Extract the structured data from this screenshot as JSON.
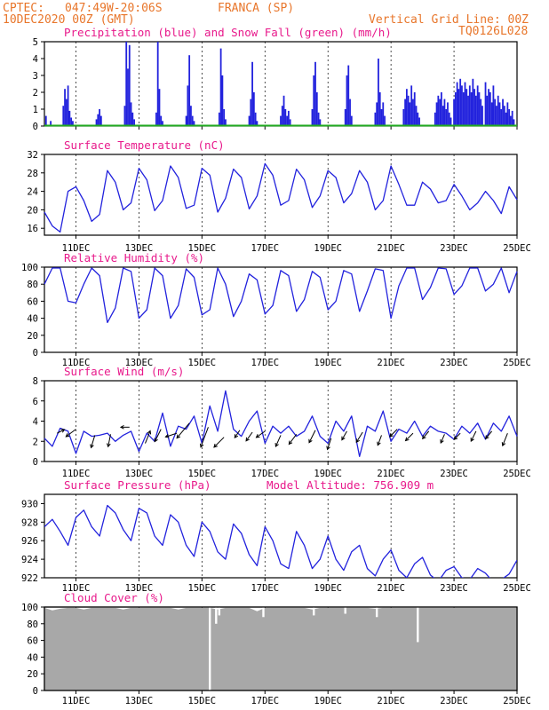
{
  "header": {
    "source": "CPTEC:",
    "coords": "047:49W-20:06S",
    "location": "FRANCA (SP)",
    "date": "10DEC2020 00Z (GMT)",
    "grid_note": "Vertical Grid Line: 00Z",
    "code": "TQ0126L028"
  },
  "colors": {
    "header_text": "#e8762b",
    "title_text": "#e8198b",
    "series_line": "#2222dd",
    "snow": "#22aa22",
    "cloud": "#a8a8a8",
    "wind_arrow": "#000000"
  },
  "x_axis": {
    "labels": [
      "11DEC",
      "13DEC",
      "15DEC",
      "17DEC",
      "19DEC",
      "21DEC",
      "23DEC",
      "25DEC"
    ],
    "day_start": 10,
    "day_end": 25
  },
  "chart_data": [
    {
      "type": "bar",
      "title": "Precipitation (blue) and Snow Fall (green) (mm/h)",
      "ylim": [
        0,
        5
      ],
      "yticks": [
        "0",
        "1",
        "2",
        "3",
        "4",
        "5"
      ],
      "series": [
        {
          "name": "Precipitation",
          "x": [
            10.05,
            10.2,
            10.6,
            10.65,
            10.7,
            10.75,
            10.8,
            10.85,
            10.9,
            11.65,
            11.7,
            11.75,
            11.8,
            12.55,
            12.6,
            12.65,
            12.7,
            12.75,
            12.8,
            12.85,
            13.55,
            13.6,
            13.65,
            13.7,
            13.75,
            14.5,
            14.55,
            14.6,
            14.65,
            14.7,
            14.75,
            15.55,
            15.6,
            15.65,
            15.7,
            15.75,
            16.5,
            16.55,
            16.6,
            16.65,
            16.7,
            16.75,
            17.5,
            17.55,
            17.6,
            17.65,
            17.7,
            17.75,
            17.8,
            18.5,
            18.55,
            18.6,
            18.65,
            18.7,
            18.75,
            19.55,
            19.6,
            19.65,
            19.7,
            19.75,
            20.5,
            20.55,
            20.6,
            20.65,
            20.7,
            20.75,
            20.8,
            21.4,
            21.45,
            21.5,
            21.55,
            21.6,
            21.65,
            21.7,
            21.75,
            21.8,
            21.85,
            21.9,
            22.4,
            22.45,
            22.5,
            22.55,
            22.6,
            22.65,
            22.7,
            22.75,
            22.8,
            22.85,
            22.9,
            23.0,
            23.05,
            23.1,
            23.15,
            23.2,
            23.25,
            23.3,
            23.35,
            23.4,
            23.45,
            23.5,
            23.55,
            23.6,
            23.65,
            23.7,
            23.75,
            23.8,
            23.85,
            23.9,
            24.0,
            24.05,
            24.1,
            24.15,
            24.2,
            24.25,
            24.3,
            24.35,
            24.4,
            24.45,
            24.5,
            24.55,
            24.6,
            24.65,
            24.7,
            24.75,
            24.8,
            24.85,
            24.9
          ],
          "values": [
            0.6,
            0.3,
            1.2,
            2.2,
            1.6,
            2.4,
            0.9,
            0.5,
            0.3,
            0.4,
            0.7,
            1.0,
            0.6,
            1.2,
            5.0,
            3.4,
            4.8,
            1.4,
            0.8,
            0.4,
            0.8,
            5.0,
            2.2,
            0.6,
            0.3,
            0.6,
            2.4,
            4.2,
            1.2,
            0.6,
            0.3,
            0.8,
            4.6,
            3.0,
            1.0,
            0.4,
            0.6,
            1.6,
            3.8,
            2.0,
            0.8,
            0.3,
            0.6,
            1.2,
            1.8,
            1.0,
            0.6,
            0.9,
            0.4,
            1.0,
            3.0,
            3.8,
            2.0,
            0.8,
            0.4,
            1.0,
            3.0,
            3.6,
            1.6,
            0.6,
            0.8,
            1.4,
            4.0,
            2.0,
            1.0,
            1.4,
            0.6,
            1.0,
            1.6,
            2.2,
            1.8,
            1.4,
            2.4,
            1.6,
            2.0,
            1.2,
            0.8,
            0.5,
            0.8,
            1.4,
            1.8,
            1.6,
            2.0,
            1.2,
            1.6,
            1.0,
            1.4,
            0.8,
            0.5,
            1.6,
            2.0,
            2.6,
            2.2,
            2.8,
            2.4,
            2.0,
            2.6,
            2.2,
            1.8,
            2.4,
            2.0,
            2.8,
            2.2,
            1.8,
            2.4,
            2.0,
            1.6,
            1.2,
            2.6,
            1.8,
            2.2,
            2.0,
            1.4,
            2.4,
            1.6,
            1.2,
            1.8,
            1.4,
            1.0,
            1.6,
            1.2,
            0.8,
            1.4,
            1.0,
            0.6,
            0.9,
            0.4
          ]
        },
        {
          "name": "Snow Fall",
          "x": [
            10.0,
            25.0
          ],
          "values": [
            0,
            0
          ]
        }
      ]
    },
    {
      "type": "line",
      "title": "Surface Temperature (nC)",
      "ylim": [
        14.5,
        32
      ],
      "yticks": [
        "16",
        "20",
        "24",
        "28",
        "32"
      ],
      "x": [
        10.0,
        10.25,
        10.5,
        10.75,
        11.0,
        11.25,
        11.5,
        11.75,
        12.0,
        12.25,
        12.5,
        12.75,
        13.0,
        13.25,
        13.5,
        13.75,
        14.0,
        14.25,
        14.5,
        14.75,
        15.0,
        15.25,
        15.5,
        15.75,
        16.0,
        16.25,
        16.5,
        16.75,
        17.0,
        17.25,
        17.5,
        17.75,
        18.0,
        18.25,
        18.5,
        18.75,
        19.0,
        19.25,
        19.5,
        19.75,
        20.0,
        20.25,
        20.5,
        20.75,
        21.0,
        21.25,
        21.5,
        21.75,
        22.0,
        22.25,
        22.5,
        22.75,
        23.0,
        23.25,
        23.5,
        23.75,
        24.0,
        24.25,
        24.5,
        24.75,
        25.0
      ],
      "values": [
        19.5,
        16.5,
        15.2,
        24.0,
        25.0,
        22.0,
        17.5,
        19.0,
        28.5,
        26.0,
        20.0,
        21.5,
        29.0,
        26.5,
        19.8,
        22.0,
        29.5,
        27.0,
        20.3,
        21.0,
        29.0,
        27.5,
        19.5,
        22.5,
        28.8,
        27.0,
        20.2,
        23.0,
        30.0,
        27.5,
        21.0,
        22.0,
        28.8,
        26.5,
        20.5,
        23.0,
        28.5,
        27.0,
        21.5,
        23.5,
        28.5,
        26.0,
        20.0,
        22.0,
        29.5,
        25.5,
        21.0,
        21.0,
        26.0,
        24.5,
        21.5,
        22.0,
        25.5,
        23.0,
        20.0,
        21.5,
        24.0,
        22.0,
        19.2,
        25.0,
        22.2
      ]
    },
    {
      "type": "line",
      "title": "Relative Humidity (%)",
      "ylim": [
        0,
        100
      ],
      "yticks": [
        "0",
        "20",
        "40",
        "60",
        "80",
        "100"
      ],
      "x": [
        10.0,
        10.25,
        10.5,
        10.75,
        11.0,
        11.25,
        11.5,
        11.75,
        12.0,
        12.25,
        12.5,
        12.75,
        13.0,
        13.25,
        13.5,
        13.75,
        14.0,
        14.25,
        14.5,
        14.75,
        15.0,
        15.25,
        15.5,
        15.75,
        16.0,
        16.25,
        16.5,
        16.75,
        17.0,
        17.25,
        17.5,
        17.75,
        18.0,
        18.25,
        18.5,
        18.75,
        19.0,
        19.25,
        19.5,
        19.75,
        20.0,
        20.25,
        20.5,
        20.75,
        21.0,
        21.25,
        21.5,
        21.75,
        22.0,
        22.25,
        22.5,
        22.75,
        23.0,
        23.25,
        23.5,
        23.75,
        24.0,
        24.25,
        24.5,
        24.75,
        25.0
      ],
      "values": [
        80.0,
        99.0,
        99.0,
        60.0,
        58.0,
        80.0,
        99.0,
        90.0,
        35.0,
        52.0,
        99.0,
        95.0,
        40.0,
        50.0,
        99.0,
        90.0,
        40.0,
        55.0,
        98.0,
        88.0,
        44.0,
        50.0,
        99.0,
        80.0,
        42.0,
        60.0,
        92.0,
        85.0,
        45.0,
        55.0,
        96.0,
        90.0,
        48.0,
        62.0,
        95.0,
        88.0,
        50.0,
        60.0,
        96.0,
        92.0,
        48.0,
        72.0,
        98.0,
        96.0,
        40.0,
        78.0,
        99.0,
        99.0,
        62.0,
        76.0,
        99.0,
        98.0,
        68.0,
        78.0,
        99.0,
        99.0,
        72.0,
        80.0,
        99.0,
        70.0,
        95.0
      ]
    },
    {
      "type": "line",
      "title": "Surface Wind (m/s)",
      "ylim": [
        0,
        8
      ],
      "yticks": [
        "0",
        "2",
        "4",
        "6",
        "8"
      ],
      "x": [
        10.0,
        10.25,
        10.5,
        10.75,
        11.0,
        11.25,
        11.5,
        11.75,
        12.0,
        12.25,
        12.5,
        12.75,
        13.0,
        13.25,
        13.5,
        13.75,
        14.0,
        14.25,
        14.5,
        14.75,
        15.0,
        15.25,
        15.5,
        15.75,
        16.0,
        16.25,
        16.5,
        16.75,
        17.0,
        17.25,
        17.5,
        17.75,
        18.0,
        18.25,
        18.5,
        18.75,
        19.0,
        19.25,
        19.5,
        19.75,
        20.0,
        20.25,
        20.5,
        20.75,
        21.0,
        21.25,
        21.5,
        21.75,
        22.0,
        22.25,
        22.5,
        22.75,
        23.0,
        23.25,
        23.5,
        23.75,
        24.0,
        24.25,
        24.5,
        24.75,
        25.0
      ],
      "values": [
        2.3,
        1.5,
        3.3,
        3.0,
        0.8,
        3.0,
        2.5,
        2.6,
        2.8,
        2.0,
        2.6,
        3.0,
        1.0,
        2.8,
        2.0,
        4.8,
        1.5,
        3.5,
        3.2,
        4.5,
        1.8,
        5.5,
        3.0,
        7.0,
        3.2,
        2.5,
        4.0,
        5.0,
        1.8,
        3.5,
        2.8,
        3.5,
        2.5,
        3.0,
        4.5,
        2.5,
        1.8,
        4.0,
        3.0,
        4.5,
        0.5,
        3.5,
        3.0,
        5.0,
        2.0,
        3.2,
        2.8,
        4.0,
        2.5,
        3.5,
        3.0,
        2.8,
        2.2,
        3.5,
        2.8,
        3.8,
        2.2,
        3.8,
        3.0,
        4.5,
        2.5
      ],
      "arrows": {
        "x": [
          10.4,
          11.0,
          11.6,
          12.1,
          12.7,
          13.2,
          13.7,
          14.2,
          14.6,
          15.2,
          15.7,
          16.2,
          16.6,
          17.0,
          17.5,
          18.0,
          18.6,
          19.1,
          19.6,
          20.1,
          20.7,
          21.2,
          21.7,
          22.2,
          22.7,
          23.2,
          23.7,
          24.2,
          24.7
        ],
        "y": [
          2.8,
          3.2,
          2.6,
          2.7,
          3.4,
          1.8,
          3.2,
          2.8,
          3.8,
          3.4,
          2.4,
          3.1,
          2.9,
          3.0,
          2.6,
          2.7,
          3.1,
          2.3,
          3.0,
          2.9,
          2.6,
          3.2,
          2.8,
          3.0,
          2.7,
          2.8,
          3.0,
          3.0,
          2.8
        ],
        "u": [
          0.6,
          -0.8,
          -0.3,
          -0.2,
          -0.7,
          0.4,
          -0.5,
          -0.9,
          -1.0,
          -0.6,
          -0.8,
          -0.4,
          -0.5,
          -0.7,
          -0.4,
          -0.6,
          -0.5,
          -0.3,
          -0.4,
          -0.5,
          -0.3,
          -0.6,
          -0.6,
          -0.5,
          -0.3,
          -0.5,
          -0.4,
          -0.5,
          -0.4
        ],
        "v": [
          0.3,
          -0.6,
          -1.0,
          -1.0,
          0.0,
          1.0,
          -1.0,
          -0.3,
          -1.2,
          -1.6,
          -0.8,
          -0.6,
          -0.7,
          -0.5,
          -0.9,
          -0.8,
          -1.0,
          -0.9,
          -0.7,
          -0.8,
          -0.8,
          -0.6,
          -0.6,
          -0.6,
          -0.7,
          -0.5,
          -0.8,
          -0.6,
          -1.0
        ]
      }
    },
    {
      "type": "line",
      "title": "Surface Pressure (hPa)",
      "annotation": "Model Altitude: 756.909 m",
      "ylim": [
        922,
        931
      ],
      "yticks": [
        "922",
        "924",
        "926",
        "928",
        "930"
      ],
      "x": [
        10.0,
        10.25,
        10.5,
        10.75,
        11.0,
        11.25,
        11.5,
        11.75,
        12.0,
        12.25,
        12.5,
        12.75,
        13.0,
        13.25,
        13.5,
        13.75,
        14.0,
        14.25,
        14.5,
        14.75,
        15.0,
        15.25,
        15.5,
        15.75,
        16.0,
        16.25,
        16.5,
        16.75,
        17.0,
        17.25,
        17.5,
        17.75,
        18.0,
        18.25,
        18.5,
        18.75,
        19.0,
        19.25,
        19.5,
        19.75,
        20.0,
        20.25,
        20.5,
        20.75,
        21.0,
        21.25,
        21.5,
        21.75,
        22.0,
        22.25,
        22.5,
        22.75,
        23.0,
        23.25,
        23.5,
        23.75,
        24.0,
        24.25,
        24.5,
        24.75,
        25.0
      ],
      "values": [
        927.5,
        928.3,
        927.0,
        925.5,
        928.5,
        929.3,
        927.5,
        926.5,
        929.8,
        929.0,
        927.2,
        926.0,
        929.5,
        929.0,
        926.5,
        925.5,
        928.8,
        928.0,
        925.5,
        924.3,
        928.0,
        927.0,
        924.8,
        924.0,
        927.8,
        926.8,
        924.5,
        923.3,
        927.5,
        926.0,
        923.5,
        923.0,
        927.0,
        925.5,
        923.0,
        924.0,
        926.5,
        924.0,
        922.8,
        924.8,
        925.5,
        923.0,
        922.2,
        924.0,
        925.0,
        922.8,
        922.0,
        923.5,
        924.2,
        922.3,
        921.6,
        922.8,
        923.2,
        922.0,
        921.8,
        923.0,
        922.5,
        921.5,
        921.8,
        922.4,
        923.9
      ]
    },
    {
      "type": "bar",
      "title": "Cloud Cover (%)",
      "ylim": [
        0,
        100
      ],
      "yticks": [
        "0",
        "20",
        "40",
        "60",
        "80",
        "100"
      ],
      "x": [
        10.0,
        10.25,
        10.5,
        10.75,
        11.0,
        11.25,
        11.5,
        11.75,
        12.0,
        12.25,
        12.5,
        12.75,
        13.0,
        13.25,
        13.5,
        13.75,
        14.0,
        14.25,
        14.5,
        14.75,
        15.0,
        15.25,
        15.5,
        15.75,
        16.0,
        16.25,
        16.5,
        16.75,
        17.0,
        17.25,
        17.5,
        17.75,
        18.0,
        18.25,
        18.5,
        18.75,
        19.0,
        19.25,
        19.5,
        19.75,
        20.0,
        20.25,
        20.5,
        20.75,
        21.0,
        21.25,
        21.5,
        21.75,
        22.0,
        22.25,
        22.5,
        22.75,
        23.0,
        23.25,
        23.5,
        23.75,
        24.0,
        24.25,
        24.5,
        24.75,
        25.0
      ],
      "values": [
        99,
        96,
        98,
        99,
        99,
        97,
        99,
        99,
        99,
        99,
        97,
        99,
        99,
        99,
        99,
        99,
        99,
        97,
        99,
        99,
        99,
        99,
        97,
        99,
        99,
        99,
        99,
        95,
        99,
        99,
        99,
        99,
        99,
        99,
        97,
        99,
        99,
        99,
        99,
        99,
        99,
        99,
        98,
        99,
        99,
        99,
        99,
        99,
        99,
        99,
        99,
        99,
        99,
        99,
        99,
        99,
        99,
        99,
        99,
        99,
        99
      ],
      "dips": {
        "x": [
          15.25,
          15.45,
          15.55,
          16.95,
          18.55,
          19.55,
          20.55,
          21.85
        ],
        "values": [
          0,
          80,
          90,
          88,
          90,
          92,
          88,
          58
        ]
      }
    }
  ]
}
